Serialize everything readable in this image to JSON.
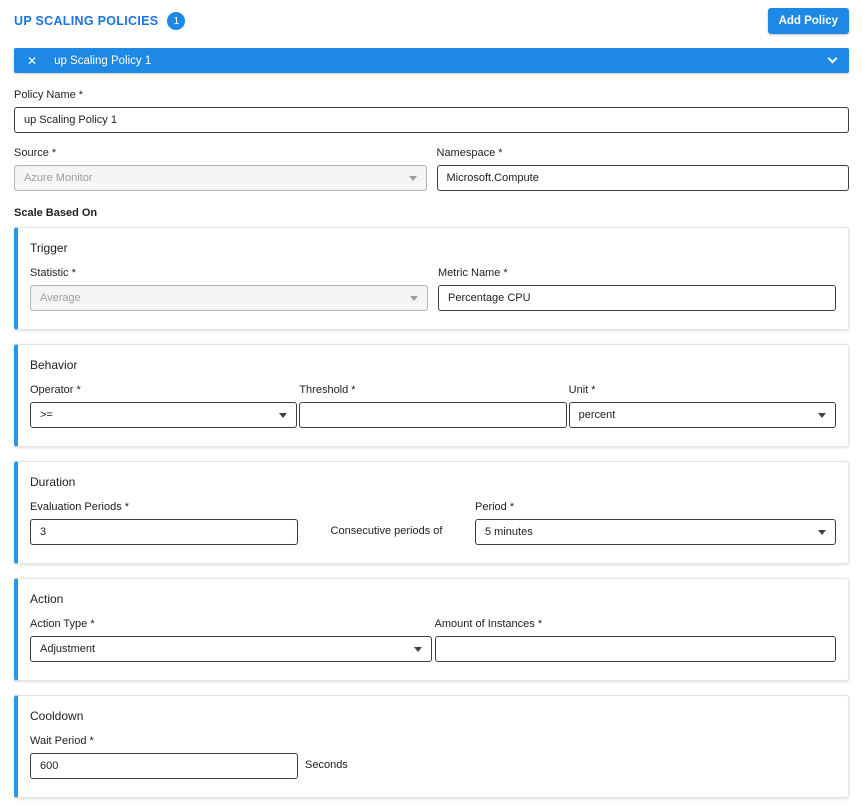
{
  "header": {
    "title": "UP SCALING POLICIES",
    "badge_count": "1",
    "add_button_label": "Add Policy"
  },
  "icons": {
    "close": "✕"
  },
  "policy_bar": {
    "title": "up Scaling Policy 1"
  },
  "form": {
    "policy_name": {
      "label": "Policy Name *",
      "value": "up Scaling Policy 1"
    },
    "source": {
      "label": "Source *",
      "value": "Azure Monitor",
      "disabled": true
    },
    "namespace": {
      "label": "Namespace *",
      "value": "Microsoft.Compute"
    },
    "scale_based_on_label": "Scale Based On"
  },
  "sections": {
    "trigger": {
      "title": "Trigger",
      "statistic": {
        "label": "Statistic *",
        "value": "Average",
        "disabled": true
      },
      "metric_name": {
        "label": "Metric Name *",
        "value": "Percentage CPU"
      }
    },
    "behavior": {
      "title": "Behavior",
      "operator": {
        "label": "Operator *",
        "value": ">="
      },
      "threshold": {
        "label": "Threshold *",
        "value": ""
      },
      "unit": {
        "label": "Unit *",
        "value": "percent"
      }
    },
    "duration": {
      "title": "Duration",
      "evaluation_periods": {
        "label": "Evaluation Periods *",
        "value": "3"
      },
      "middle_text": "Consecutive periods of",
      "period": {
        "label": "Period *",
        "value": "5 minutes"
      }
    },
    "action": {
      "title": "Action",
      "action_type": {
        "label": "Action Type *",
        "value": "Adjustment"
      },
      "amount_of_instances": {
        "label": "Amount of Instances *",
        "value": ""
      }
    },
    "cooldown": {
      "title": "Cooldown",
      "wait_period": {
        "label": "Wait Period *",
        "value": "600"
      },
      "suffix_text": "Seconds"
    }
  },
  "colors": {
    "accent_blue": "#1e88e5",
    "card_accent_blue": "#2196f3",
    "title_blue": "#1a73e8",
    "disabled_bg": "#f5f5f5",
    "disabled_text": "#9e9e9e",
    "input_border": "#3c4043"
  }
}
